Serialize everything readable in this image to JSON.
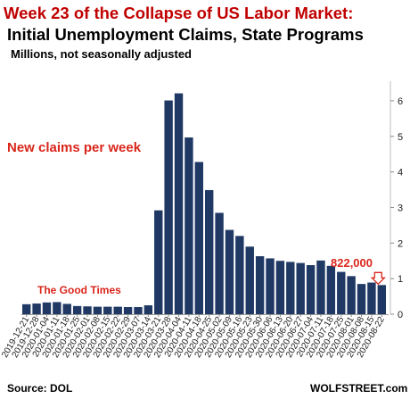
{
  "chart_data": {
    "type": "bar",
    "title": "Week 23 of the Collapse of US Labor Market:",
    "subtitle": "Initial Unemployment Claims, State Programs",
    "units_note": "Millions, not seasonally adjusted",
    "ylim": [
      0,
      6.4
    ],
    "yticks": [
      0,
      1,
      2,
      3,
      4,
      5,
      6
    ],
    "y_axis_position": "right",
    "grid": false,
    "bar_color": "#1f3864",
    "categories": [
      "2019-12-21",
      "2019-12-28",
      "2020-01-04",
      "2020-01-11",
      "2020-01-18",
      "2020-01-25",
      "2020-02-01",
      "2020-02-08",
      "2020-02-15",
      "2020-02-22",
      "2020-02-29",
      "2020-03-07",
      "2020-03-14",
      "2020-03-21",
      "2020-03-28",
      "2020-04-04",
      "2020-04-11",
      "2020-04-18",
      "2020-04-25",
      "2020-05-02",
      "2020-05-09",
      "2020-05-16",
      "2020-05-23",
      "2020-05-30",
      "2020-06-06",
      "2020-06-13",
      "2020-06-20",
      "2020-06-27",
      "2020-07-04",
      "2020-07-11",
      "2020-07-18",
      "2020-07-25",
      "2020-08-01",
      "2020-08-08",
      "2020-08-15",
      "2020-08-22"
    ],
    "values": [
      0.28,
      0.3,
      0.33,
      0.34,
      0.29,
      0.23,
      0.22,
      0.21,
      0.21,
      0.21,
      0.2,
      0.2,
      0.25,
      2.92,
      6.01,
      6.21,
      4.97,
      4.28,
      3.49,
      2.85,
      2.37,
      2.2,
      1.9,
      1.63,
      1.57,
      1.5,
      1.47,
      1.44,
      1.38,
      1.51,
      1.36,
      1.19,
      1.07,
      0.85,
      0.89,
      0.82
    ],
    "tick_labels": [
      "2019-12-21",
      "2019-12-28",
      "2020-01-04",
      "2020-01-11",
      "2020-01-18",
      "2020-01-25",
      "2020-02-01",
      "2020-02-08",
      "2020-02-15",
      "2020-02-22",
      "2020-02-29",
      "2020-03-07",
      "2020-03-14",
      "2020-03-21",
      "2020-03-28",
      "2020-04-04",
      "2020-04-11",
      "2020-04-18",
      "2020-04-25",
      "2020-05-02",
      "2020-05-09",
      "2020-05-16",
      "2020-05-23",
      "2020-05-30",
      "2020-06-06",
      "2020-06-13",
      "2020-06-20",
      "2020-06-27",
      "2020-07-04",
      "2020-07-11",
      "2020-07-18",
      "2020-07-25",
      "2020-08-01",
      "2020-08-08",
      "2020-08-15",
      "2020-08-22"
    ],
    "annotations": {
      "claims": "New claims per week",
      "good_times": "The Good Times",
      "last_value": "822,000"
    },
    "annotation_color": "#d9261c",
    "source": "Source: DOL",
    "brand": "WOLFSTREET.com"
  }
}
